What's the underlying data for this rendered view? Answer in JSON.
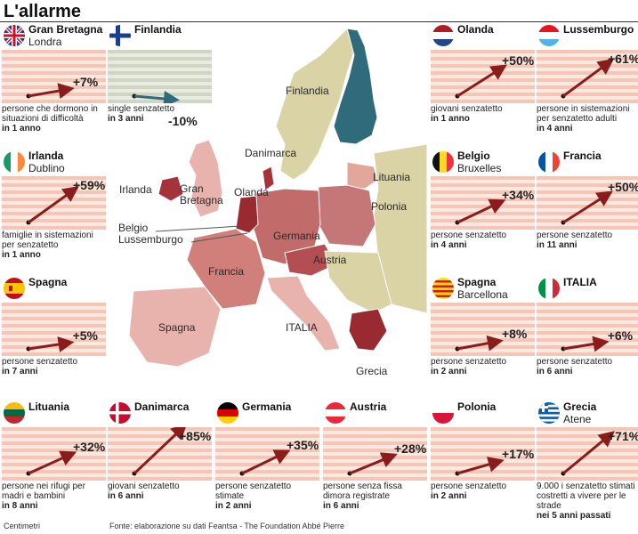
{
  "title": "L'allarme",
  "map_labels": {
    "finlandia": "Finlandia",
    "danimarca": "Danimarca",
    "lituania": "Lituania",
    "irlanda": "Irlanda",
    "gran_bretagna": "Gran\nBretagna",
    "olanda": "Olanda",
    "polonia": "Polonia",
    "belgio": "Belgio",
    "lussemburgo": "Lussemburgo",
    "germania": "Germania",
    "austria": "Austria",
    "francia": "Francia",
    "spagna": "Spagna",
    "italia": "ITALIA",
    "grecia": "Grecia"
  },
  "cards": {
    "gb": {
      "name": "Gran Bretagna",
      "city": "Londra",
      "pct": "+7%",
      "desc": "persone che dormono in situazioni di difficoltà",
      "period": "in 1 anno",
      "value": 7
    },
    "fi": {
      "name": "Finlandia",
      "city": "",
      "pct": "-10%",
      "desc": "single senzatetto",
      "period": "in 3 anni",
      "value": -10
    },
    "nl": {
      "name": "Olanda",
      "city": "",
      "pct": "+50%",
      "desc": "giovani senzatetto",
      "period": "in 1 anno",
      "value": 50
    },
    "lu": {
      "name": "Lussemburgo",
      "city": "",
      "pct": "+61%",
      "desc": "persone in sistemazioni per senzatetto adulti",
      "period": "in 4 anni",
      "value": 61
    },
    "ie": {
      "name": "Irlanda",
      "city": "Dublino",
      "pct": "+59%",
      "desc": "famiglie in sistemazioni per senzatetto",
      "period": "in 1 anno",
      "value": 59
    },
    "be": {
      "name": "Belgio",
      "city": "Bruxelles",
      "pct": "+34%",
      "desc": "persone senzatetto",
      "period": "in 4 anni",
      "value": 34
    },
    "fr": {
      "name": "Francia",
      "city": "",
      "pct": "+50%",
      "desc": "persone senzatetto",
      "period": "in 11 anni",
      "value": 50
    },
    "es": {
      "name": "Spagna",
      "city": "",
      "pct": "+5%",
      "desc": "persone senzatetto",
      "period": "in 7 anni",
      "value": 5
    },
    "es_bcn": {
      "name": "Spagna",
      "city": "Barcellona",
      "pct": "+8%",
      "desc": "persone senzatetto",
      "period": "in 2 anni",
      "value": 8
    },
    "it": {
      "name": "ITALIA",
      "city": "",
      "pct": "+6%",
      "desc": "persone senzatetto",
      "period": "in 6 anni",
      "value": 6
    },
    "lt": {
      "name": "Lituania",
      "city": "",
      "pct": "+32%",
      "desc": "persone nei rifugi per madri e bambini",
      "period": "in 8 anni",
      "value": 32
    },
    "dk": {
      "name": "Danimarca",
      "city": "",
      "pct": "+85%",
      "desc": "giovani senzatetto",
      "period": "in 6 anni",
      "value": 85
    },
    "de": {
      "name": "Germania",
      "city": "",
      "pct": "+35%",
      "desc": "persone senzatetto stimate",
      "period": "in 2 anni",
      "value": 35
    },
    "at": {
      "name": "Austria",
      "city": "",
      "pct": "+28%",
      "desc": "persone senza fissa dimora registrate",
      "period": "in 6 anni",
      "value": 28
    },
    "pl": {
      "name": "Polonia",
      "city": "",
      "pct": "+17%",
      "desc": "persone senzatetto",
      "period": "in 2 anni",
      "value": 17
    },
    "gr": {
      "name": "Grecia",
      "city": "Atene",
      "pct": "+71%",
      "desc": "9.000 i senzatetto stimati costretti a vivere per le strade",
      "period": "nei 5 anni passati",
      "value": 71
    }
  },
  "footer": "Centimetri",
  "source": "Fonte: elaborazione su dati Feantsa - The Foundation Abbé Pierre",
  "colors": {
    "accent": "#8b1c1c",
    "stripe": "#f3c6b5",
    "teal": "#2f6b7a"
  }
}
